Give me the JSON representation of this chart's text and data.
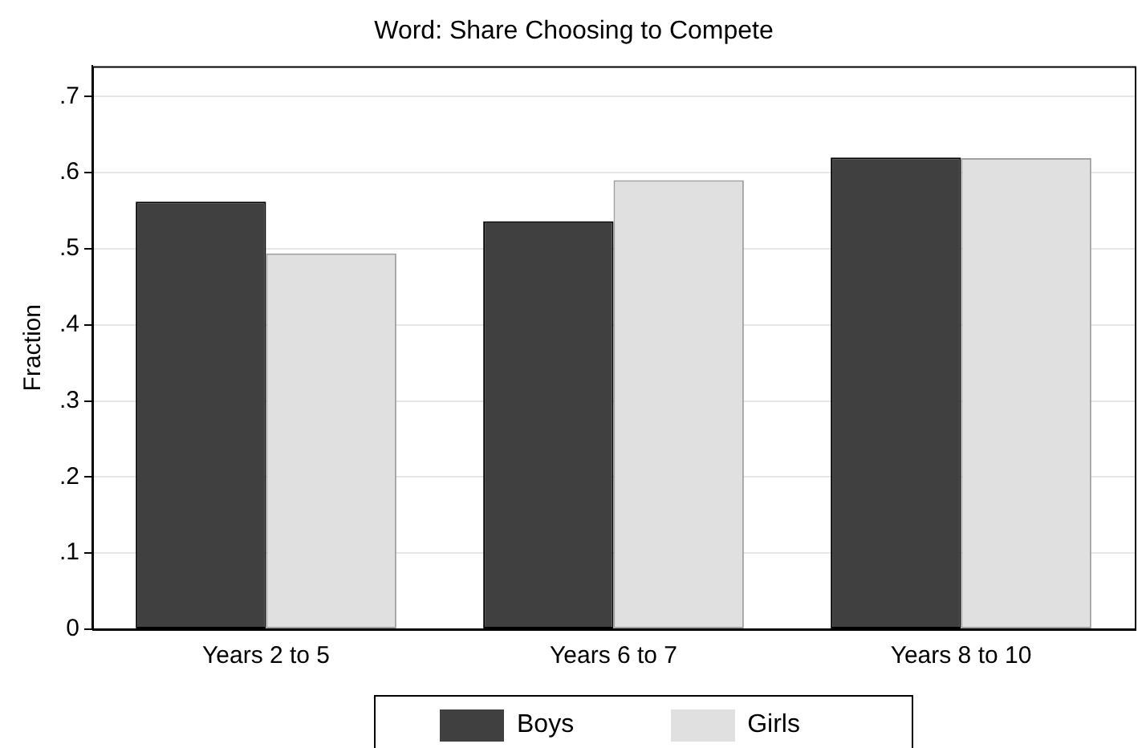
{
  "chart_data": {
    "type": "bar",
    "title": "Word: Share Choosing to Compete",
    "ylabel": "Fraction",
    "categories": [
      "Years 2 to 5",
      "Years 6 to 7",
      "Years 8 to 10"
    ],
    "series": [
      {
        "name": "Boys",
        "color": "#404040",
        "values": [
          0.562,
          0.536,
          0.62
        ]
      },
      {
        "name": "Girls",
        "color": "#e0e0e0",
        "values": [
          0.494,
          0.59,
          0.619
        ]
      }
    ],
    "ylim": [
      0,
      0.74
    ],
    "yticks": [
      0,
      {
        "value": 0.1,
        "label": ".1"
      },
      {
        "value": 0.2,
        "label": ".2"
      },
      {
        "value": 0.3,
        "label": ".3"
      },
      {
        "value": 0.4,
        "label": ".4"
      },
      {
        "value": 0.5,
        "label": ".5"
      },
      {
        "value": 0.6,
        "label": ".6"
      },
      {
        "value": 0.7,
        "label": ".7"
      }
    ],
    "grid": "y",
    "legend": "bottom"
  }
}
